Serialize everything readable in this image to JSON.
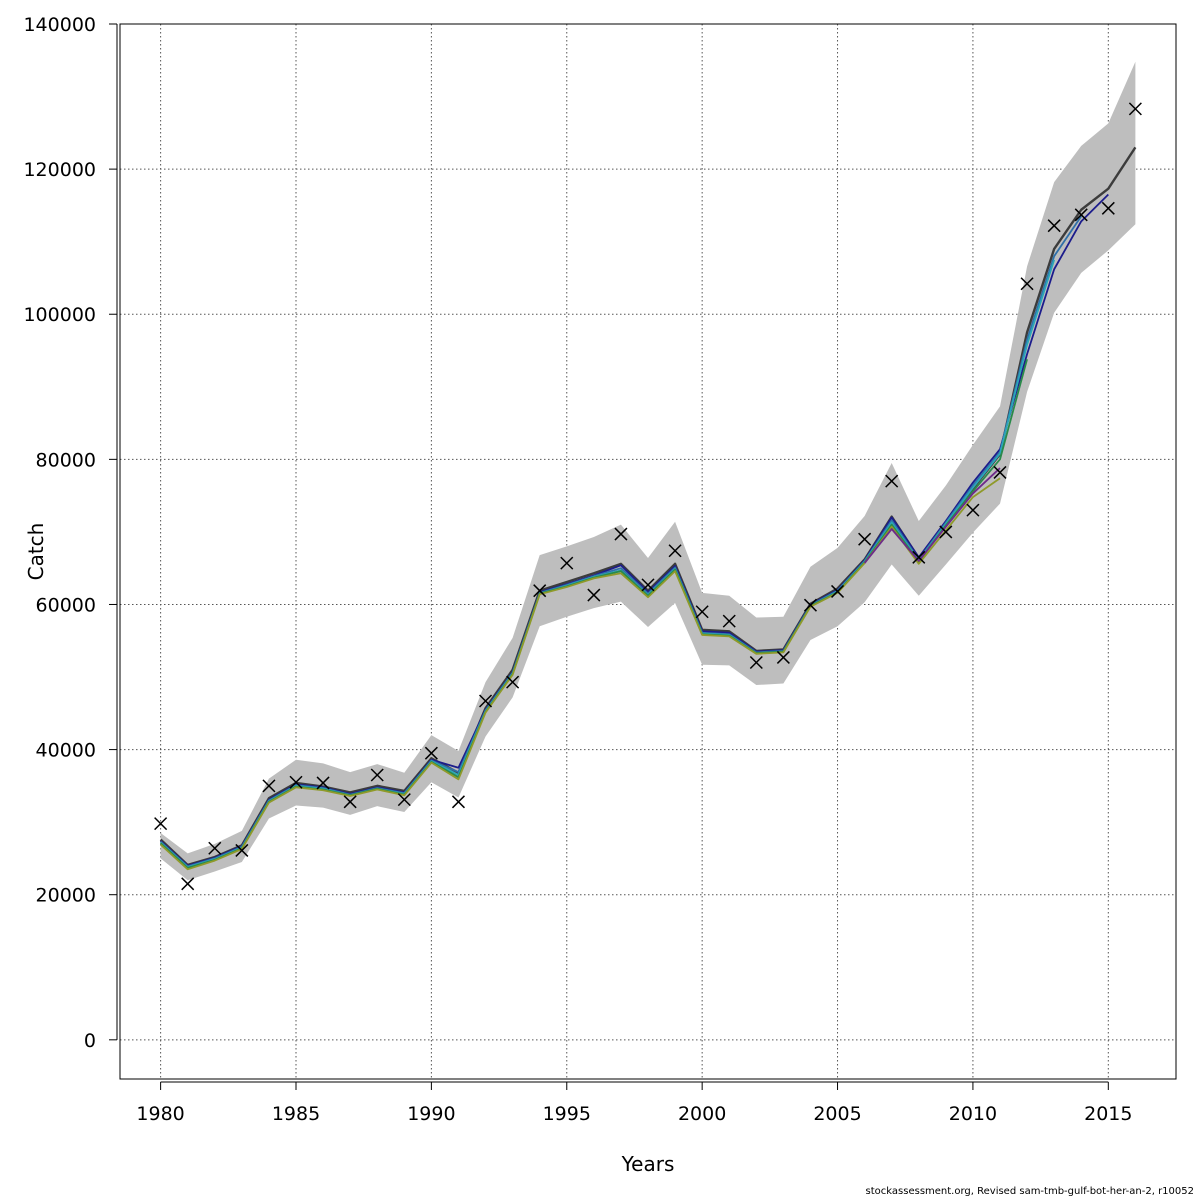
{
  "chart_data": {
    "type": "line",
    "title": "",
    "xlabel": "Years",
    "ylabel": "Catch",
    "xlim": [
      1978.5,
      2017.5
    ],
    "ylim": [
      -5400,
      140000
    ],
    "xticks": [
      1980,
      1985,
      1990,
      1995,
      2000,
      2005,
      2010,
      2015
    ],
    "yticks": [
      0,
      20000,
      40000,
      60000,
      80000,
      100000,
      120000,
      140000
    ],
    "grid": true,
    "legend": "none",
    "band": {
      "x": [
        1980,
        1981,
        1982,
        1983,
        1984,
        1985,
        1986,
        1987,
        1988,
        1989,
        1990,
        1991,
        1992,
        1993,
        1994,
        1995,
        1996,
        1997,
        1998,
        1999,
        2000,
        2001,
        2002,
        2003,
        2004,
        2005,
        2006,
        2007,
        2008,
        2009,
        2010,
        2011,
        2012,
        2013,
        2014,
        2015,
        2016
      ],
      "lower": [
        25000,
        22000,
        23200,
        24500,
        30500,
        32300,
        32000,
        31000,
        32200,
        31400,
        35500,
        33400,
        41800,
        47200,
        57000,
        58300,
        59500,
        60400,
        56900,
        60200,
        51700,
        51600,
        48900,
        49100,
        55100,
        57000,
        60300,
        65500,
        61200,
        65500,
        69900,
        73900,
        89300,
        100200,
        105700,
        108800,
        112400
      ],
      "upper": [
        28500,
        25700,
        27000,
        28800,
        36000,
        38600,
        38100,
        36900,
        38000,
        36800,
        42000,
        39800,
        49300,
        55400,
        66800,
        68000,
        69300,
        71000,
        66400,
        71400,
        61600,
        61200,
        58200,
        58300,
        65200,
        67800,
        72200,
        79500,
        71500,
        76400,
        82000,
        87300,
        106600,
        118200,
        123200,
        126300,
        134800
      ],
      "color": "#bebebe"
    },
    "observed": {
      "marker": "x",
      "x": [
        1980,
        1981,
        1982,
        1983,
        1984,
        1985,
        1986,
        1987,
        1988,
        1989,
        1990,
        1991,
        1992,
        1993,
        1994,
        1995,
        1996,
        1997,
        1998,
        1999,
        2000,
        2001,
        2002,
        2003,
        2004,
        2005,
        2006,
        2007,
        2008,
        2009,
        2010,
        2011,
        2012,
        2013,
        2014,
        2015,
        2016
      ],
      "y": [
        29800,
        21500,
        26400,
        26100,
        35000,
        35500,
        35400,
        32800,
        36500,
        33100,
        39500,
        32800,
        46700,
        49300,
        61900,
        65700,
        61300,
        69700,
        62700,
        67400,
        59000,
        57700,
        52000,
        52700,
        59900,
        61800,
        69000,
        77000,
        66500,
        70000,
        73000,
        78200,
        104200,
        112200,
        113700,
        114600,
        128300
      ]
    },
    "series": [
      {
        "color": "#3c3c3c",
        "x": [
          1980,
          1981,
          1982,
          1983,
          1984,
          1985,
          1986,
          1987,
          1988,
          1989,
          1990,
          1991,
          1992,
          1993,
          1994,
          1995,
          1996,
          1997,
          1998,
          1999,
          2000,
          2001,
          2002,
          2003,
          2004,
          2005,
          2006,
          2007,
          2008,
          2009,
          2010,
          2011,
          2012,
          2013,
          2014,
          2015,
          2016
        ],
        "values": [
          27600,
          24100,
          25200,
          26800,
          33300,
          35400,
          34900,
          34100,
          35000,
          34300,
          38800,
          36800,
          45700,
          51000,
          61900,
          63100,
          64300,
          65600,
          61900,
          65600,
          56500,
          56300,
          53600,
          53800,
          60100,
          62200,
          66200,
          72100,
          66400,
          71100,
          76000,
          80700,
          97500,
          109000,
          114400,
          117300,
          123000
        ]
      },
      {
        "color": "#1c1c8c",
        "x": [
          1980,
          1981,
          1982,
          1983,
          1984,
          1985,
          1986,
          1987,
          1988,
          1989,
          1990,
          1991,
          1992,
          1993,
          1994,
          1995,
          1996,
          1997,
          1998,
          1999,
          2000,
          2001,
          2002,
          2003,
          2004,
          2005,
          2006,
          2007,
          2008,
          2009,
          2010,
          2011,
          2012,
          2013,
          2014,
          2015
        ],
        "values": [
          27400,
          24000,
          25100,
          26700,
          33100,
          35200,
          34800,
          33900,
          34800,
          34100,
          38600,
          37500,
          45500,
          50700,
          61700,
          62800,
          64000,
          65400,
          61700,
          65300,
          56300,
          56100,
          53500,
          53700,
          60000,
          62000,
          66100,
          72000,
          66500,
          71500,
          76800,
          81400,
          94500,
          106200,
          112800,
          116500
        ]
      },
      {
        "color": "#2f6fa8",
        "x": [
          1980,
          1981,
          1982,
          1983,
          1984,
          1985,
          1986,
          1987,
          1988,
          1989,
          1990,
          1991,
          1992,
          1993,
          1994,
          1995,
          1996,
          1997,
          1998,
          1999,
          2000,
          2001,
          2002,
          2003,
          2004,
          2005,
          2006,
          2007,
          2008,
          2009,
          2010,
          2011,
          2012,
          2013,
          2014
        ],
        "values": [
          27300,
          23900,
          25000,
          26600,
          33000,
          35100,
          34700,
          33800,
          34700,
          34000,
          38500,
          36900,
          45400,
          50600,
          61600,
          62700,
          63900,
          65000,
          61500,
          65100,
          56100,
          55900,
          53400,
          53600,
          59900,
          61900,
          66000,
          71600,
          66200,
          71300,
          76400,
          81000,
          96500,
          108000,
          113500
        ]
      },
      {
        "color": "#2aa6b8",
        "x": [
          1980,
          1981,
          1982,
          1983,
          1984,
          1985,
          1986,
          1987,
          1988,
          1989,
          1990,
          1991,
          1992,
          1993,
          1994,
          1995,
          1996,
          1997,
          1998,
          1999,
          2000,
          2001,
          2002,
          2003,
          2004,
          2005,
          2006,
          2007,
          2008,
          2009,
          2010,
          2011,
          2012,
          2013
        ],
        "values": [
          27200,
          23800,
          24900,
          26500,
          32900,
          35000,
          34600,
          33700,
          34600,
          33900,
          38400,
          36500,
          45300,
          50500,
          61500,
          62600,
          63800,
          64700,
          61300,
          64900,
          56000,
          55800,
          53300,
          53500,
          59800,
          61800,
          65900,
          71300,
          66000,
          71100,
          76100,
          80800,
          95800,
          107500
        ]
      },
      {
        "color": "#2a8a4a",
        "x": [
          1980,
          1981,
          1982,
          1983,
          1984,
          1985,
          1986,
          1987,
          1988,
          1989,
          1990,
          1991,
          1992,
          1993,
          1994,
          1995,
          1996,
          1997,
          1998,
          1999,
          2000,
          2001,
          2002,
          2003,
          2004,
          2005,
          2006,
          2007,
          2008,
          2009,
          2010,
          2011,
          2012
        ],
        "values": [
          27100,
          23700,
          24800,
          26400,
          32800,
          34900,
          34500,
          33700,
          34600,
          33800,
          38300,
          36200,
          45200,
          50400,
          61500,
          62500,
          63700,
          64600,
          61200,
          64800,
          55900,
          55700,
          53300,
          53500,
          59800,
          61700,
          65800,
          71000,
          65900,
          70900,
          75600,
          80000,
          93800
        ]
      },
      {
        "color": "#8f9a2a",
        "x": [
          1980,
          1981,
          1982,
          1983,
          1984,
          1985,
          1986,
          1987,
          1988,
          1989,
          1990,
          1991,
          1992,
          1993,
          1994,
          1995,
          1996,
          1997,
          1998,
          1999,
          2000,
          2001,
          2002,
          2003,
          2004,
          2005,
          2006,
          2007,
          2008,
          2009,
          2010,
          2011
        ],
        "values": [
          26900,
          23500,
          24700,
          26300,
          32700,
          34800,
          34400,
          33600,
          34500,
          33700,
          38200,
          35900,
          45100,
          50300,
          61400,
          62400,
          63600,
          64300,
          61000,
          64600,
          55800,
          55600,
          53200,
          53400,
          59700,
          61600,
          65700,
          70700,
          65600,
          70200,
          74800,
          77400
        ]
      },
      {
        "color": "#6e2a8a",
        "x": [
          2006,
          2007,
          2008,
          2009,
          2010,
          2011
        ],
        "values": [
          65700,
          70400,
          66000,
          70700,
          75300,
          78800
        ]
      }
    ]
  },
  "footer": "stockassessment.org, Revised sam-tmb-gulf-bot-her-an-2, r10052"
}
